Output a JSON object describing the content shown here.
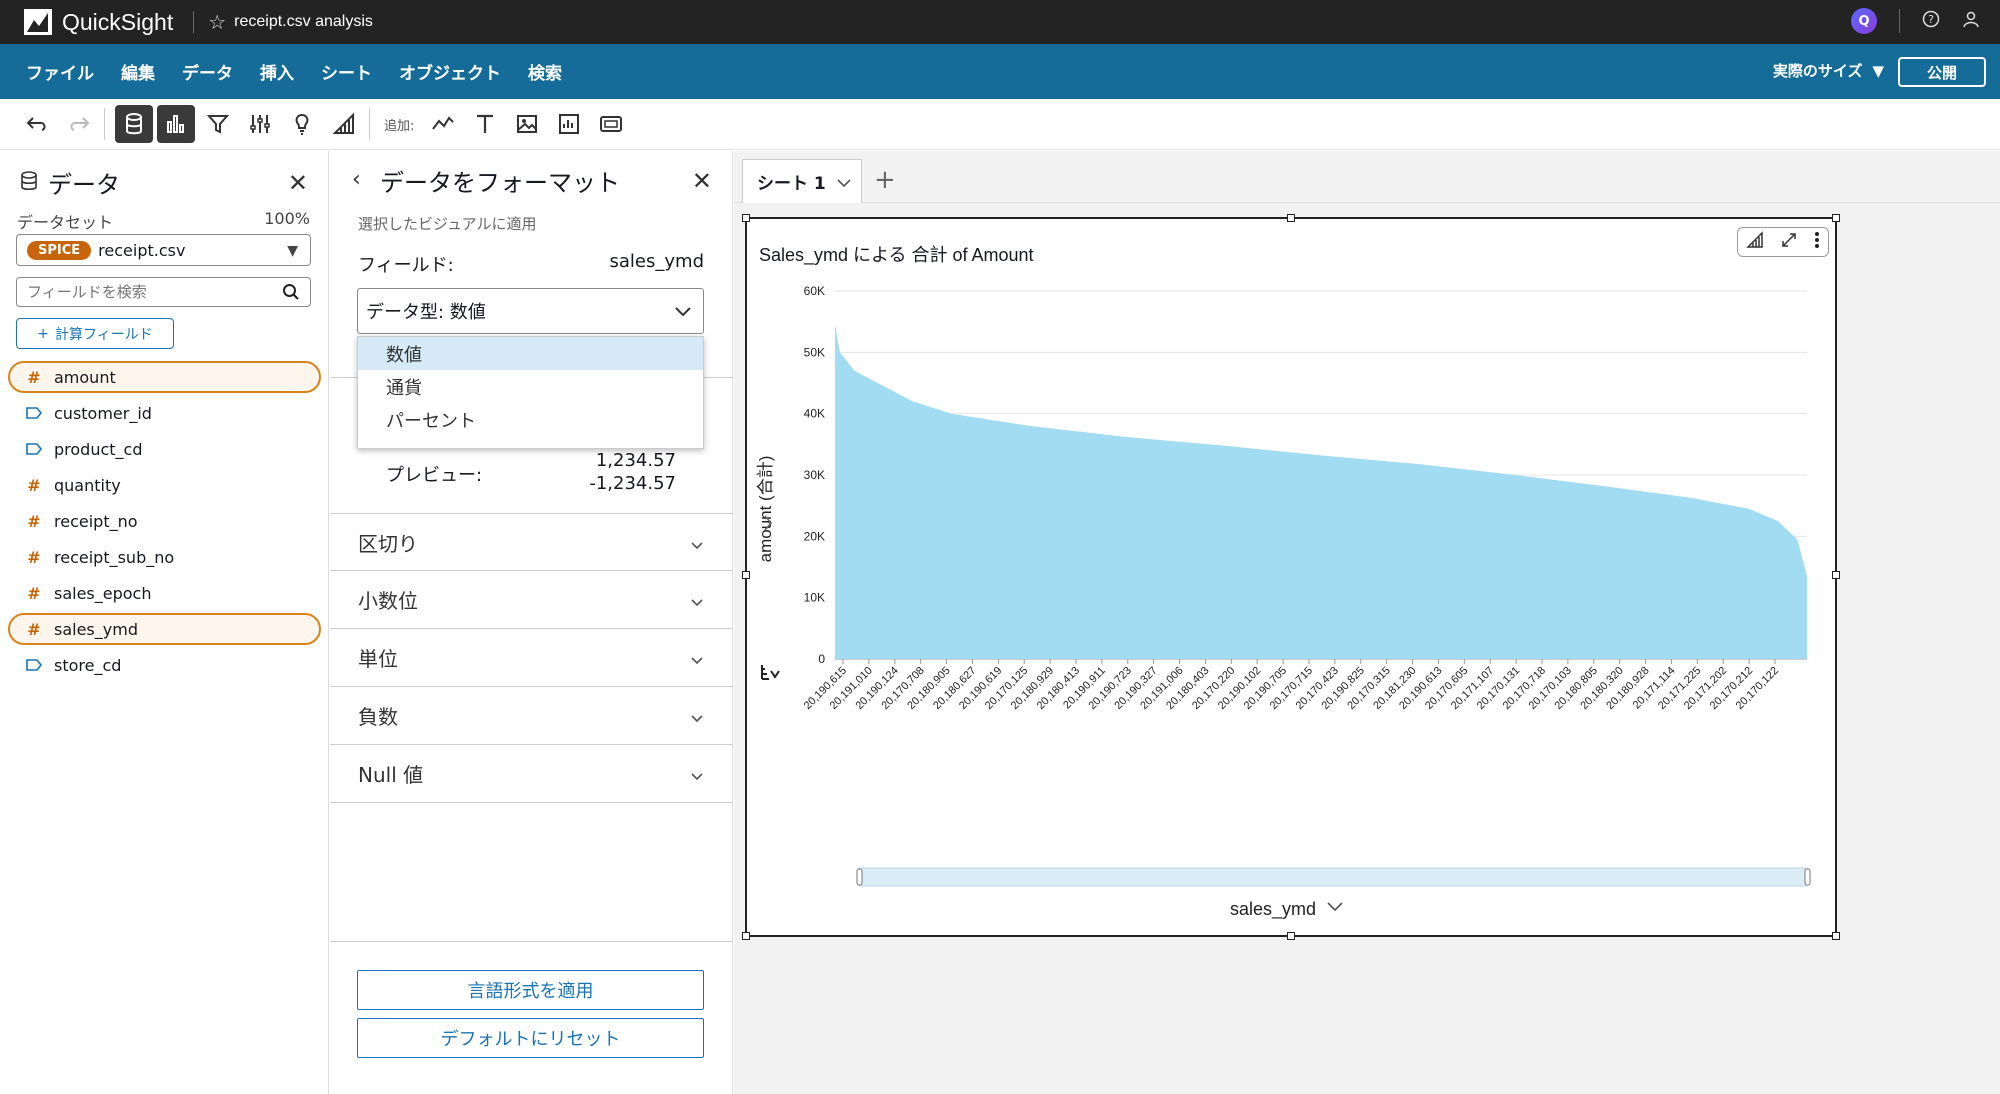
{
  "app": {
    "name": "QuickSight",
    "doc_title": "receipt.csv analysis"
  },
  "menu": [
    "ファイル",
    "編集",
    "データ",
    "挿入",
    "シート",
    "オブジェクト",
    "検索"
  ],
  "menu_right": {
    "size": "実際のサイズ",
    "publish": "公開"
  },
  "toolbar": {
    "add_label": "追加:"
  },
  "data_panel": {
    "title": "データ",
    "dataset_label": "データセット",
    "dataset_pct": "100%",
    "spice": "SPICE",
    "dataset_name": "receipt.csv",
    "search_placeholder": "フィールドを検索",
    "calc_field": "計算フィールド",
    "fields": [
      {
        "name": "amount",
        "kind": "measure",
        "selected": true
      },
      {
        "name": "customer_id",
        "kind": "dimension",
        "selected": false
      },
      {
        "name": "product_cd",
        "kind": "dimension",
        "selected": false
      },
      {
        "name": "quantity",
        "kind": "measure",
        "selected": false
      },
      {
        "name": "receipt_no",
        "kind": "measure",
        "selected": false
      },
      {
        "name": "receipt_sub_no",
        "kind": "measure",
        "selected": false
      },
      {
        "name": "sales_epoch",
        "kind": "measure",
        "selected": false
      },
      {
        "name": "sales_ymd",
        "kind": "measure",
        "selected": true
      },
      {
        "name": "store_cd",
        "kind": "dimension",
        "selected": false
      }
    ]
  },
  "format_panel": {
    "title": "データをフォーマット",
    "subtitle": "選択したビジュアルに適用",
    "field_label": "フィールド:",
    "field_value": "sales_ymd",
    "data_type": "データ型: 数値",
    "options": [
      "数値",
      "通貨",
      "パーセント"
    ],
    "preview_label": "プレビュー:",
    "preview_values": [
      "1,234.57",
      "-1,234.57"
    ],
    "sections": [
      "区切り",
      "小数位",
      "単位",
      "負数",
      "Null 値"
    ],
    "apply_button": "言語形式を適用",
    "reset_button": "デフォルトにリセット"
  },
  "sheet": {
    "tab": "シート 1"
  },
  "visual": {
    "title": "Sales_ymd による 合計 of Amount",
    "colors": {
      "bar": "#a2dcf2",
      "handle": "#222222"
    }
  },
  "chart_data": {
    "type": "bar",
    "title": "Sales_ymd による 合計 of Amount",
    "xlabel": "sales_ymd",
    "ylabel": "amount (合計)",
    "ylim": [
      0,
      60000
    ],
    "yticks": [
      "0",
      "10K",
      "20K",
      "30K",
      "40K",
      "50K",
      "60K"
    ],
    "grid": true,
    "bar_color": "#a2dcf2",
    "sorted": "descending",
    "curve": [
      {
        "x": 0.0,
        "y": 54500
      },
      {
        "x": 0.005,
        "y": 50000
      },
      {
        "x": 0.02,
        "y": 47000
      },
      {
        "x": 0.05,
        "y": 44500
      },
      {
        "x": 0.08,
        "y": 42000
      },
      {
        "x": 0.12,
        "y": 40000
      },
      {
        "x": 0.2,
        "y": 38000
      },
      {
        "x": 0.3,
        "y": 36200
      },
      {
        "x": 0.4,
        "y": 34800
      },
      {
        "x": 0.5,
        "y": 33200
      },
      {
        "x": 0.6,
        "y": 31800
      },
      {
        "x": 0.7,
        "y": 30000
      },
      {
        "x": 0.8,
        "y": 28000
      },
      {
        "x": 0.88,
        "y": 26300
      },
      {
        "x": 0.94,
        "y": 24500
      },
      {
        "x": 0.97,
        "y": 22500
      },
      {
        "x": 0.99,
        "y": 19500
      },
      {
        "x": 1.0,
        "y": 13500
      }
    ],
    "x_tick_labels": [
      "20,190,615",
      "20,191,010",
      "20,190,124",
      "20,170,708",
      "20,180,905",
      "20,180,627",
      "20,190,619",
      "20,170,125",
      "20,180,929",
      "20,180,413",
      "20,190,911",
      "20,190,723",
      "20,190,327",
      "20,191,006",
      "20,180,403",
      "20,170,220",
      "20,190,102",
      "20,190,705",
      "20,170,715",
      "20,170,423",
      "20,190,825",
      "20,170,315",
      "20,181,230",
      "20,190,613",
      "20,170,605",
      "20,171,107",
      "20,170,131",
      "20,170,718",
      "20,170,103",
      "20,180,805",
      "20,180,320",
      "20,180,928",
      "20,171,114",
      "20,171,225",
      "20,171,202",
      "20,170,212",
      "20,170,122"
    ]
  }
}
